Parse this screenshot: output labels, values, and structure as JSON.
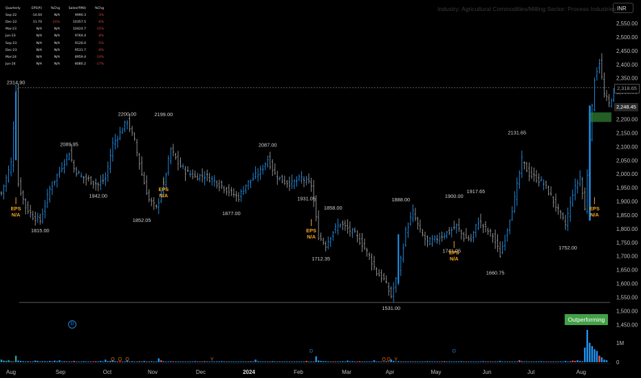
{
  "quarterly_table": {
    "headers": [
      "Quarterly",
      "EPS(₹)",
      "%Chg",
      "Sales(₹Mil)",
      "%Chg"
    ],
    "rows": [
      [
        "Sep-22",
        "-14.60",
        "N/A",
        "9990.3",
        "-3%"
      ],
      [
        "Dec-22",
        "11.70",
        "-24%",
        "10357.5",
        "-6%"
      ],
      [
        "Mar-23",
        "N/A",
        "N/A",
        "10424.7",
        "-15%"
      ],
      [
        "Jun-23",
        "N/A",
        "N/A",
        "9764.4",
        "-8%"
      ],
      [
        "Sep-23",
        "N/A",
        "N/A",
        "9126.0",
        "-5%"
      ],
      [
        "Dec-23",
        "N/A",
        "N/A",
        "9531.7",
        "-8%"
      ],
      [
        "Mar-24",
        "N/A",
        "N/A",
        "8959.4",
        "-14%"
      ],
      [
        "Jun-24",
        "N/A",
        "N/A",
        "8080.2",
        "-17%"
      ]
    ]
  },
  "industry_text": "Industry: Agricultural Commodities/Milling  Sector: Process Industries",
  "currency": "INR",
  "badge": "Outperforming",
  "d_icon": "D",
  "price_tags": {
    "upper": "2,318.65",
    "current": "2,248.45"
  },
  "colors": {
    "up": "#2196f3",
    "down": "#9e9e9e",
    "eps": "#f5a623",
    "vol_green": "#26a69a",
    "vol_red": "#ef5350",
    "badge": "#43a047"
  },
  "chart_data": {
    "type": "bar",
    "subtype": "ohlc-daily",
    "y_axis": {
      "ticks": [
        "2,550.00",
        "2,500.00",
        "2,450.00",
        "2,400.00",
        "2,350.00",
        "2,300.00",
        "2,250.00",
        "2,200.00",
        "2,150.00",
        "2,100.00",
        "2,050.00",
        "2,000.00",
        "1,950.00",
        "1,900.00",
        "1,850.00",
        "1,800.00",
        "1,750.00",
        "1,700.00",
        "1,650.00",
        "1,600.00",
        "1,550.00",
        "1,500.00",
        "1,450.00"
      ],
      "ylim": [
        1430,
        2570
      ]
    },
    "x_axis": {
      "ticks": [
        "Aug",
        "Sep",
        "Oct",
        "Nov",
        "Dec",
        "2024",
        "Feb",
        "Mar",
        "Apr",
        "May",
        "Jun",
        "Jul",
        "Aug"
      ]
    },
    "volume_axis": {
      "ticks": [
        "1M",
        "0"
      ]
    },
    "reference_lines": [
      2314.9,
      1531.0
    ],
    "close_path": [
      [
        0,
        1930
      ],
      [
        2,
        1985
      ],
      [
        4,
        2040
      ],
      [
        6,
        2310
      ],
      [
        7,
        1965
      ],
      [
        10,
        1880
      ],
      [
        13,
        1845
      ],
      [
        16,
        1830
      ],
      [
        20,
        1945
      ],
      [
        24,
        2010
      ],
      [
        28,
        2080
      ],
      [
        30,
        2020
      ],
      [
        33,
        1990
      ],
      [
        36,
        1980
      ],
      [
        40,
        1960
      ],
      [
        43,
        1985
      ],
      [
        46,
        2110
      ],
      [
        49,
        2150
      ],
      [
        52,
        2195
      ],
      [
        55,
        2120
      ],
      [
        58,
        2000
      ],
      [
        61,
        1905
      ],
      [
        64,
        1875
      ],
      [
        67,
        1960
      ],
      [
        70,
        2090
      ],
      [
        73,
        2040
      ],
      [
        76,
        2010
      ],
      [
        80,
        1990
      ],
      [
        84,
        1995
      ],
      [
        88,
        1975
      ],
      [
        92,
        1950
      ],
      [
        96,
        1925
      ],
      [
        98,
        1915
      ],
      [
        101,
        1960
      ],
      [
        104,
        1985
      ],
      [
        107,
        2010
      ],
      [
        110,
        2055
      ],
      [
        113,
        2000
      ],
      [
        116,
        1975
      ],
      [
        120,
        1965
      ],
      [
        124,
        1985
      ],
      [
        128,
        1960
      ],
      [
        131,
        1775
      ],
      [
        134,
        1740
      ],
      [
        137,
        1790
      ],
      [
        140,
        1820
      ],
      [
        143,
        1800
      ],
      [
        146,
        1780
      ],
      [
        149,
        1745
      ],
      [
        152,
        1700
      ],
      [
        155,
        1640
      ],
      [
        158,
        1615
      ],
      [
        161,
        1555
      ],
      [
        164,
        1640
      ],
      [
        167,
        1790
      ],
      [
        170,
        1860
      ],
      [
        173,
        1790
      ],
      [
        176,
        1750
      ],
      [
        179,
        1760
      ],
      [
        182,
        1775
      ],
      [
        185,
        1790
      ],
      [
        188,
        1810
      ],
      [
        191,
        1770
      ],
      [
        194,
        1760
      ],
      [
        197,
        1830
      ],
      [
        200,
        1800
      ],
      [
        203,
        1775
      ],
      [
        206,
        1705
      ],
      [
        209,
        1800
      ],
      [
        212,
        1910
      ],
      [
        215,
        2050
      ],
      [
        218,
        2000
      ],
      [
        221,
        1985
      ],
      [
        224,
        1965
      ],
      [
        227,
        1920
      ],
      [
        230,
        1865
      ],
      [
        233,
        1815
      ],
      [
        236,
        1930
      ],
      [
        239,
        1990
      ],
      [
        241,
        1870
      ],
      [
        243,
        2130
      ],
      [
        245,
        2350
      ],
      [
        247,
        2410
      ],
      [
        249,
        2290
      ],
      [
        251,
        2255
      ],
      [
        253,
        2300
      ]
    ],
    "annotations": [
      {
        "label": "2314.90",
        "x": 6,
        "y": 2314.9,
        "pos": "above"
      },
      {
        "label": "1815.00",
        "x": 16,
        "y": 1815,
        "pos": "below"
      },
      {
        "label": "2089.95",
        "x": 28,
        "y": 2089.95,
        "pos": "above"
      },
      {
        "label": "1942.00",
        "x": 40,
        "y": 1942,
        "pos": "below"
      },
      {
        "label": "2200.00",
        "x": 52,
        "y": 2200,
        "pos": "above"
      },
      {
        "label": "1852.05",
        "x": 58,
        "y": 1852.05,
        "pos": "below"
      },
      {
        "label": "2199.00",
        "x": 67,
        "y": 2199,
        "pos": "above"
      },
      {
        "label": "1877.00",
        "x": 95,
        "y": 1877,
        "pos": "below"
      },
      {
        "label": "2087.00",
        "x": 110,
        "y": 2087,
        "pos": "above"
      },
      {
        "label": "1931.05",
        "x": 126,
        "y": 1931.05,
        "pos": "below"
      },
      {
        "label": "1712.35",
        "x": 132,
        "y": 1712.35,
        "pos": "below"
      },
      {
        "label": "1858.00",
        "x": 137,
        "y": 1858,
        "pos": "above"
      },
      {
        "label": "1531.00",
        "x": 161,
        "y": 1531,
        "pos": "below"
      },
      {
        "label": "1888.00",
        "x": 165,
        "y": 1888,
        "pos": "above"
      },
      {
        "label": "1741.05",
        "x": 186,
        "y": 1741.05,
        "pos": "below"
      },
      {
        "label": "1900.00",
        "x": 187,
        "y": 1900,
        "pos": "above"
      },
      {
        "label": "1917.65",
        "x": 196,
        "y": 1917.65,
        "pos": "above"
      },
      {
        "label": "1660.75",
        "x": 204,
        "y": 1660.75,
        "pos": "below"
      },
      {
        "label": "2131.65",
        "x": 213,
        "y": 2131.65,
        "pos": "above"
      },
      {
        "label": "1752.00",
        "x": 234,
        "y": 1752,
        "pos": "below"
      }
    ],
    "eps_markers": [
      {
        "x": 6,
        "label": "EPS\nN/A"
      },
      {
        "x": 67,
        "label": "EPS\nN/A"
      },
      {
        "x": 128,
        "label": "EPS\nN/A"
      },
      {
        "x": 187,
        "label": "EPS\nN/A"
      },
      {
        "x": 245,
        "label": "EPS\nN/A"
      }
    ],
    "volume_pattern": [
      0.08,
      0.05,
      0.04,
      0.06,
      0.03,
      0.02,
      0.2,
      0.05,
      0.04,
      0.03,
      0.02,
      0.03,
      0.02,
      0.02,
      0.05,
      0.04,
      0.02,
      0.03,
      0.03,
      0.02,
      0.04,
      0.02,
      0.05,
      0.03,
      0.06,
      0.02,
      0.03,
      0.02,
      0.02,
      0.02,
      0.04,
      0.02,
      0.02,
      0.02,
      0.03,
      0.02,
      0.02,
      0.02,
      0.02,
      0.03,
      0.02,
      0.04,
      0.02,
      0.08,
      0.03,
      0.04,
      0.06,
      0.03,
      0.02,
      0.03,
      0.02,
      0.02,
      0.05,
      0.02,
      0.03,
      0.02,
      0.02,
      0.03,
      0.02,
      0.04,
      0.02,
      0.02,
      0.03,
      0.02,
      0.02,
      0.12,
      0.06,
      0.03,
      0.02,
      0.02,
      0.03,
      0.02,
      0.02,
      0.02,
      0.02,
      0.02,
      0.02,
      0.02,
      0.02,
      0.02,
      0.03,
      0.02,
      0.02,
      0.02,
      0.03,
      0.02,
      0.02,
      0.02,
      0.02,
      0.02,
      0.02,
      0.03,
      0.02,
      0.02,
      0.02,
      0.02,
      0.02,
      0.02,
      0.02,
      0.02,
      0.02,
      0.02,
      0.02,
      0.03,
      0.02,
      0.08,
      0.03,
      0.02,
      0.02,
      0.02,
      0.02,
      0.02,
      0.03,
      0.02,
      0.02,
      0.02,
      0.02,
      0.02,
      0.02,
      0.02,
      0.02,
      0.02,
      0.02,
      0.02,
      0.02,
      0.02,
      0.04,
      0.02,
      0.02,
      0.02,
      0.18,
      0.05,
      0.04,
      0.03,
      0.03,
      0.02,
      0.02,
      0.02,
      0.02,
      0.02,
      0.02,
      0.03,
      0.02,
      0.05,
      0.02,
      0.03,
      0.02,
      0.02,
      0.03,
      0.02,
      0.02,
      0.02,
      0.02,
      0.02,
      0.06,
      0.02,
      0.02,
      0.02,
      0.02,
      0.03,
      0.02,
      0.08,
      0.04,
      0.02,
      0.03,
      0.02,
      0.02,
      0.02,
      0.02,
      0.02,
      0.02,
      0.02,
      0.02,
      0.02,
      0.02,
      0.02,
      0.03,
      0.02,
      0.02,
      0.02,
      0.02,
      0.02,
      0.02,
      0.03,
      0.02,
      0.02,
      0.02,
      0.02,
      0.02,
      0.02,
      0.03,
      0.02,
      0.02,
      0.02,
      0.02,
      0.02,
      0.02,
      0.02,
      0.02,
      0.03,
      0.02,
      0.02,
      0.02,
      0.02,
      0.02,
      0.02,
      0.04,
      0.02,
      0.02,
      0.02,
      0.02,
      0.02,
      0.02,
      0.02,
      0.06,
      0.03,
      0.02,
      0.02,
      0.02,
      0.02,
      0.02,
      0.02,
      0.02,
      0.03,
      0.02,
      0.02,
      0.02,
      0.02,
      0.02,
      0.02,
      0.02,
      0.02,
      0.02,
      0.04,
      0.02,
      0.03,
      0.05,
      0.04,
      0.06,
      0.04,
      0.03,
      0.45,
      1.0,
      0.6,
      0.5,
      0.4,
      0.35,
      0.2,
      0.15,
      0.08,
      0.06
    ],
    "volume_event_markers": [
      {
        "x": 46,
        "label": "O"
      },
      {
        "x": 49,
        "label": "O"
      },
      {
        "x": 52,
        "label": "O"
      },
      {
        "x": 87,
        "label": "Y"
      },
      {
        "x": 158,
        "label": "O"
      },
      {
        "x": 160,
        "label": "O"
      },
      {
        "x": 163,
        "label": "Y"
      },
      {
        "x": 128,
        "label": "D"
      },
      {
        "x": 187,
        "label": "D"
      }
    ]
  }
}
